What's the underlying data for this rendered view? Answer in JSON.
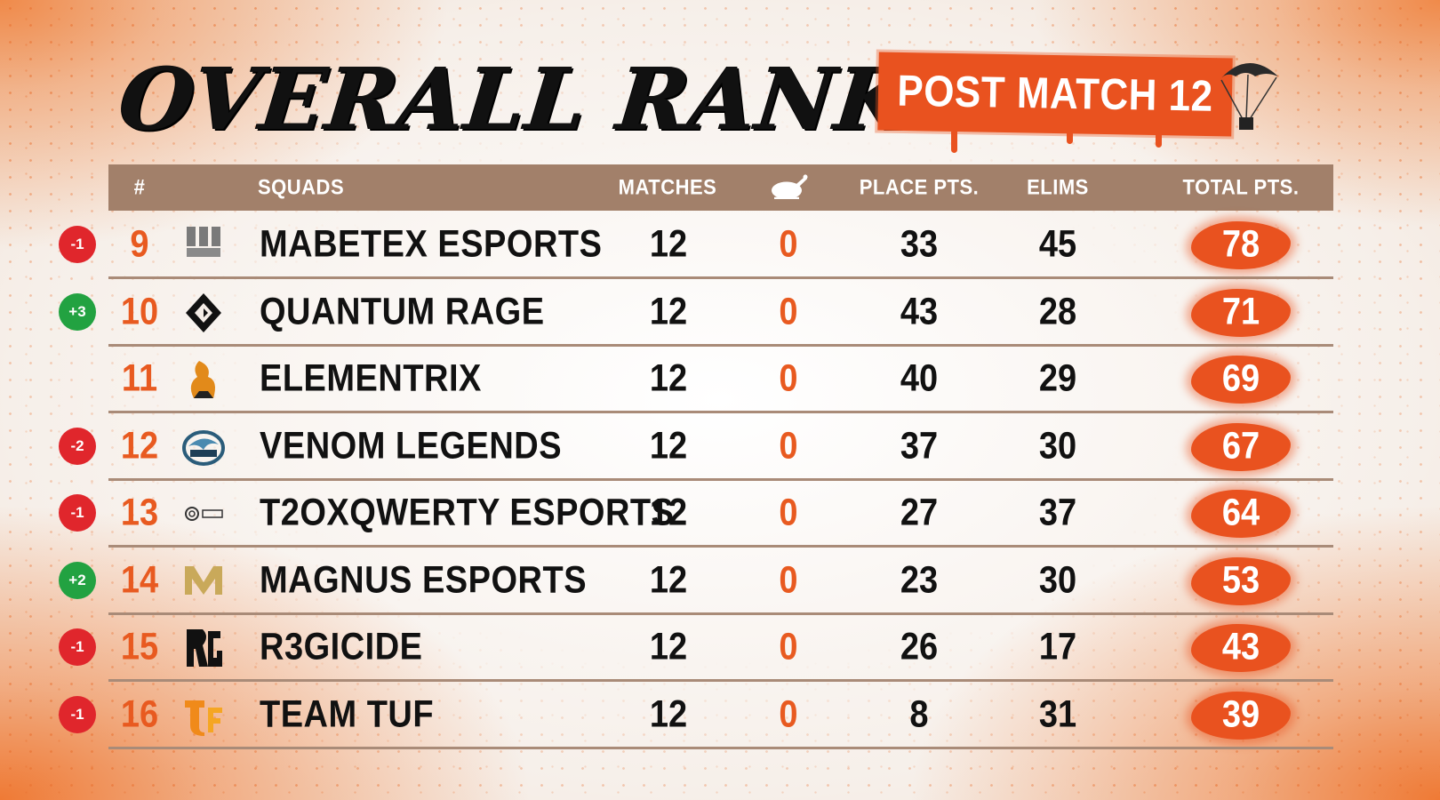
{
  "title": "OVERALL RANKING",
  "banner": "POST MATCH 12",
  "headers": {
    "rank": "#",
    "squads": "SQUADS",
    "matches": "MATCHES",
    "chicken_icon": "chicken-dinner-icon",
    "place_pts": "PLACE PTS.",
    "elims": "ELIMS",
    "total_pts": "TOTAL PTS."
  },
  "colors": {
    "accent": "#e9521f",
    "header_bg": "#a2806a",
    "down": "#e0262c",
    "up": "#22a241"
  },
  "rows": [
    {
      "change": "-1",
      "dir": "down",
      "rank": "9",
      "logo": "mabetex-logo",
      "team": "MABETEX ESPORTS",
      "matches": "12",
      "wins": "0",
      "place": "33",
      "elims": "45",
      "total": "78"
    },
    {
      "change": "+3",
      "dir": "up",
      "rank": "10",
      "logo": "quantum-logo",
      "team": "QUANTUM RAGE",
      "matches": "12",
      "wins": "0",
      "place": "43",
      "elims": "28",
      "total": "71"
    },
    {
      "change": "",
      "dir": "none",
      "rank": "11",
      "logo": "elementrix-logo",
      "team": "ELEMENTRIX",
      "matches": "12",
      "wins": "0",
      "place": "40",
      "elims": "29",
      "total": "69"
    },
    {
      "change": "-2",
      "dir": "down",
      "rank": "12",
      "logo": "venom-logo",
      "team": "VENOM LEGENDS",
      "matches": "12",
      "wins": "0",
      "place": "37",
      "elims": "30",
      "total": "67"
    },
    {
      "change": "-1",
      "dir": "down",
      "rank": "13",
      "logo": "t2o-logo",
      "team": "T2OXQWERTY ESPORTS",
      "matches": "12",
      "wins": "0",
      "place": "27",
      "elims": "37",
      "total": "64"
    },
    {
      "change": "+2",
      "dir": "up",
      "rank": "14",
      "logo": "magnus-logo",
      "team": "MAGNUS ESPORTS",
      "matches": "12",
      "wins": "0",
      "place": "23",
      "elims": "30",
      "total": "53"
    },
    {
      "change": "-1",
      "dir": "down",
      "rank": "15",
      "logo": "r3gicide-logo",
      "team": "R3GICIDE",
      "matches": "12",
      "wins": "0",
      "place": "26",
      "elims": "17",
      "total": "43"
    },
    {
      "change": "-1",
      "dir": "down",
      "rank": "16",
      "logo": "teamtuf-logo",
      "team": "TEAM TUF",
      "matches": "12",
      "wins": "0",
      "place": "8",
      "elims": "31",
      "total": "39"
    }
  ]
}
